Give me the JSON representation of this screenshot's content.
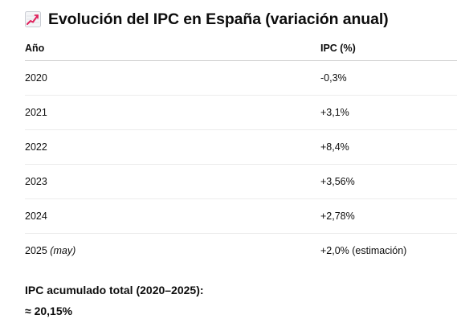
{
  "title": {
    "icon": "chart-increasing-icon",
    "text": "Evolución del IPC en España (variación anual)"
  },
  "table": {
    "headers": [
      "Año",
      "IPC (%)"
    ],
    "rows": [
      {
        "year": "2020",
        "note": "",
        "ipc": "-0,3%"
      },
      {
        "year": "2021",
        "note": "",
        "ipc": "+3,1%"
      },
      {
        "year": "2022",
        "note": "",
        "ipc": "+8,4%"
      },
      {
        "year": "2023",
        "note": "",
        "ipc": "+3,56%"
      },
      {
        "year": "2024",
        "note": "",
        "ipc": "+2,78%"
      },
      {
        "year": "2025",
        "note": "(may)",
        "ipc": "+2,0% (estimación)"
      }
    ]
  },
  "summary": {
    "label": "IPC acumulado total (2020–2025):",
    "value": "≈ 20,15%"
  }
}
